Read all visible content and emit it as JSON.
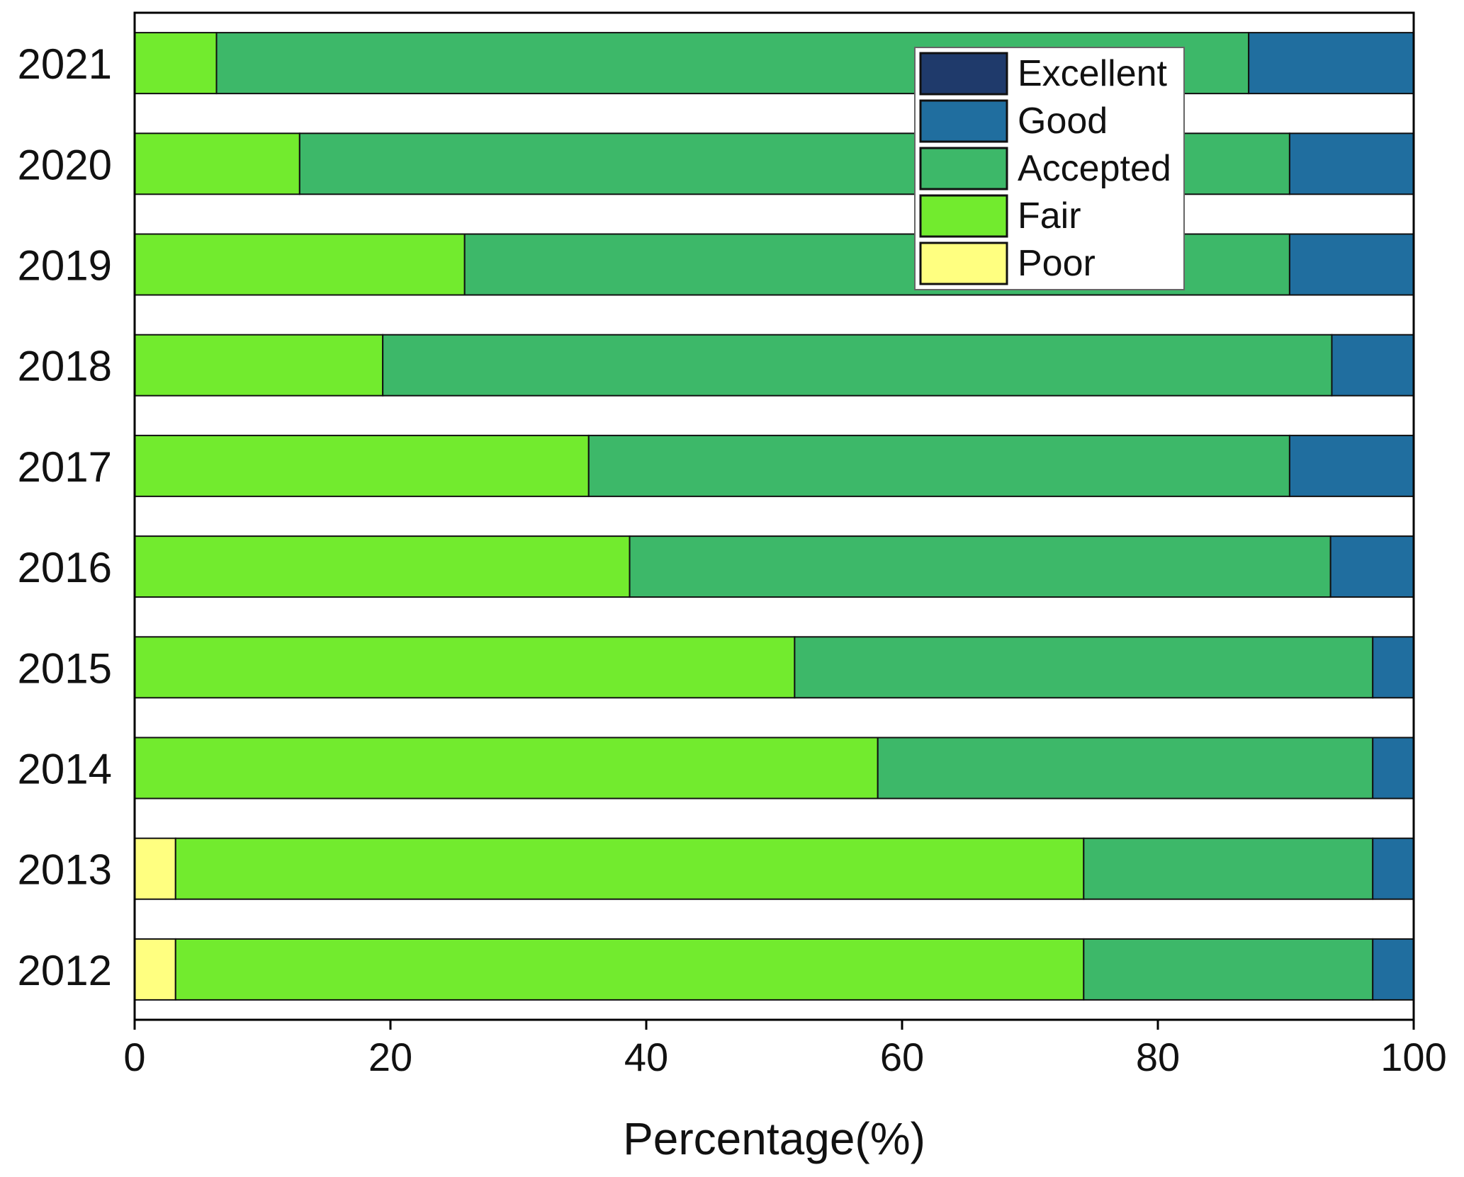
{
  "chart_data": {
    "type": "bar",
    "orientation": "horizontal",
    "stacked": true,
    "title": "",
    "xlabel": "Percentage(%)",
    "ylabel": "",
    "xlim": [
      0,
      100
    ],
    "xticks": [
      "0",
      "20",
      "40",
      "60",
      "80",
      "100"
    ],
    "categories": [
      "2021",
      "2020",
      "2019",
      "2018",
      "2017",
      "2016",
      "2015",
      "2014",
      "2013",
      "2012"
    ],
    "series": [
      {
        "name": "Poor",
        "color": "#FFFF80",
        "values": [
          0,
          0,
          0,
          0,
          0,
          0,
          0,
          0,
          3.2,
          3.2
        ]
      },
      {
        "name": "Fair",
        "color": "#72EB2E",
        "values": [
          6.4,
          12.9,
          25.8,
          19.4,
          35.5,
          38.7,
          51.6,
          58.1,
          71.0,
          71.0
        ]
      },
      {
        "name": "Accepted",
        "color": "#3DB869",
        "values": [
          80.7,
          77.4,
          64.5,
          74.2,
          54.8,
          54.8,
          45.2,
          38.7,
          22.6,
          22.6
        ]
      },
      {
        "name": "Good",
        "color": "#206E9F",
        "values": [
          12.9,
          9.7,
          9.7,
          6.4,
          9.7,
          6.5,
          3.2,
          3.2,
          3.2,
          3.2
        ]
      },
      {
        "name": "Excellent",
        "color": "#1F3A6B",
        "values": [
          0,
          0,
          0,
          0,
          0,
          0,
          0,
          0,
          0,
          0
        ]
      }
    ],
    "legend": {
      "position": "top-right",
      "entries": [
        "Excellent",
        "Good",
        "Accepted",
        "Fair",
        "Poor"
      ]
    },
    "grid": false
  }
}
